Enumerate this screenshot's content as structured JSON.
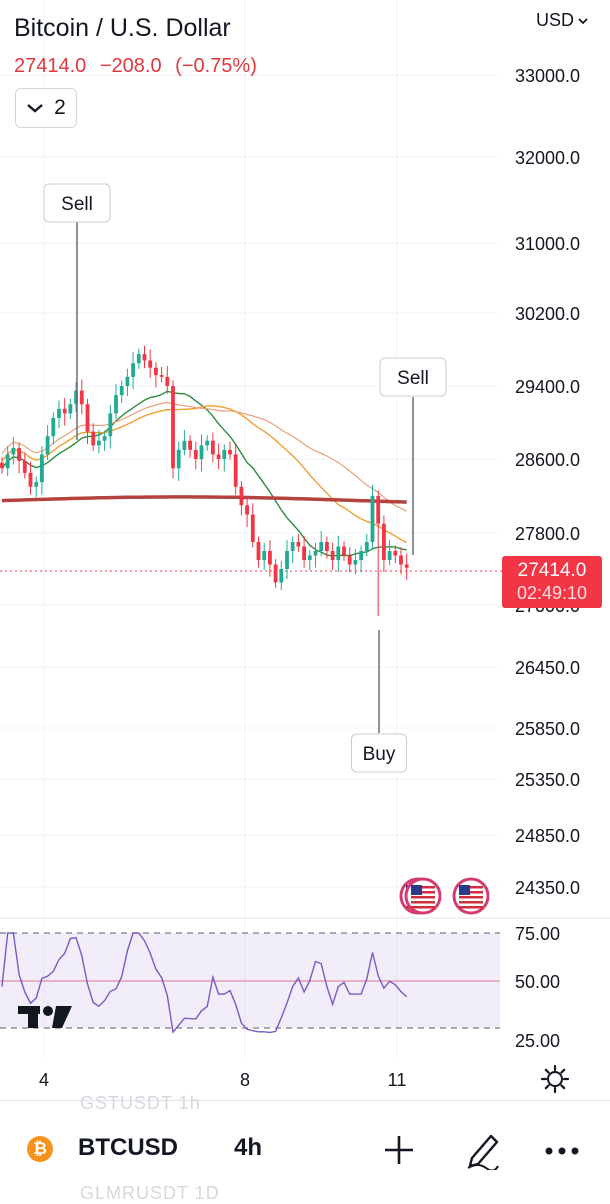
{
  "header": {
    "title": "Bitcoin / U.S. Dollar",
    "last_price": "27414.0",
    "change": "−208.0",
    "change_pct": "(−0.75%)",
    "currency": "USD",
    "indicator_count": "2"
  },
  "price_label": {
    "price": "27414.0",
    "countdown": "02:49:10"
  },
  "price_axis": [
    "33000.0",
    "32000.0",
    "31000.0",
    "30200.0",
    "29400.0",
    "28600.0",
    "27800.0",
    "27000.0",
    "26450.0",
    "25850.0",
    "25350.0",
    "24850.0",
    "24350.0"
  ],
  "time_axis": [
    "4",
    "8",
    "11"
  ],
  "rsi_axis": [
    "75.00",
    "50.00",
    "25.00"
  ],
  "signals": [
    {
      "label": "Sell"
    },
    {
      "label": "Sell"
    },
    {
      "label": "Buy"
    }
  ],
  "bottom_bar": {
    "symbol": "BTCUSD",
    "timeframe": "4h",
    "ghost_top": "GSTUSDT  1h",
    "ghost_bottom": "GLMRUSDT  1D",
    "coin_glyph": "₿"
  },
  "colors": {
    "up": "#22ab94",
    "down": "#f23645",
    "sma200": "#b2433f",
    "ema_fast": "#2e8b3e",
    "ema_slow": "#f0a030",
    "rsi": "#7e57c2"
  },
  "chart_data": {
    "type": "candlestick",
    "title": "Bitcoin / U.S. Dollar",
    "interval": "4h",
    "x_ticks": [
      "4",
      "8",
      "11"
    ],
    "ylim": [
      24350,
      33000
    ],
    "candles_close": [
      28500,
      28650,
      28720,
      28580,
      28450,
      28300,
      28350,
      28650,
      28850,
      29050,
      29150,
      29100,
      29200,
      29350,
      29200,
      28900,
      28750,
      28800,
      28850,
      29100,
      29300,
      29400,
      29500,
      29650,
      29750,
      29680,
      29600,
      29520,
      29500,
      29400,
      28500,
      28700,
      28800,
      28700,
      28600,
      28750,
      28800,
      28650,
      28600,
      28700,
      28650,
      28300,
      28100,
      28000,
      27700,
      27500,
      27600,
      27450,
      27250,
      27400,
      27600,
      27700,
      27650,
      27500,
      27550,
      27600,
      27700,
      27600,
      27500,
      27650,
      27550,
      27450,
      27500,
      27600,
      27700,
      28200,
      27900,
      27500,
      27600,
      27550,
      27450,
      27414
    ],
    "rsi_ylim": [
      20,
      80
    ],
    "rsi_ticks": [
      75,
      50,
      25
    ]
  }
}
